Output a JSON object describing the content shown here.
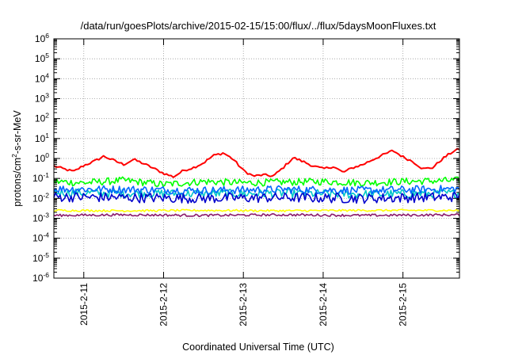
{
  "chart_data": {
    "type": "line",
    "title": "/data/run/goesPlots/archive/2015-02-15/15:00/flux/../flux/5daysMoonFluxes.txt",
    "xlabel": "Coordinated Universal Time (UTC)",
    "ylabel": {
      "base": "protons/cm",
      "exp": "2",
      "rest": "-s-sr-MeV"
    },
    "yscale": "log",
    "ylim": [
      1e-06,
      1000000.0
    ],
    "y_ticks": [
      {
        "base": "10",
        "exp": "-6"
      },
      {
        "base": "10",
        "exp": "-5"
      },
      {
        "base": "10",
        "exp": "-4"
      },
      {
        "base": "10",
        "exp": "-3"
      },
      {
        "base": "10",
        "exp": "-2"
      },
      {
        "base": "10",
        "exp": "-1"
      },
      {
        "base": "10",
        "exp": "0"
      },
      {
        "base": "10",
        "exp": "1"
      },
      {
        "base": "10",
        "exp": "2"
      },
      {
        "base": "10",
        "exp": "3"
      },
      {
        "base": "10",
        "exp": "4"
      },
      {
        "base": "10",
        "exp": "5"
      },
      {
        "base": "10",
        "exp": "6"
      }
    ],
    "xlim": [
      "2015-02-10T15:00",
      "2015-02-15T17:00"
    ],
    "x_ticks": [
      "2015-2-11",
      "2015-2-12",
      "2015-2-13",
      "2015-2-14",
      "2015-2-15"
    ],
    "grid": true,
    "series": [
      {
        "color": "#ff0000",
        "points": [
          [
            "2015-02-10T15:00",
            0.42
          ],
          [
            "2015-02-10T18:00",
            0.3
          ],
          [
            "2015-02-10T21:00",
            0.22
          ],
          [
            "2015-02-11T00:00",
            0.45
          ],
          [
            "2015-02-11T03:00",
            0.7
          ],
          [
            "2015-02-11T06:00",
            1.3
          ],
          [
            "2015-02-11T09:00",
            0.8
          ],
          [
            "2015-02-11T12:00",
            0.5
          ],
          [
            "2015-02-11T15:00",
            0.9
          ],
          [
            "2015-02-11T18:00",
            0.55
          ],
          [
            "2015-02-11T21:00",
            0.32
          ],
          [
            "2015-02-12T00:00",
            0.18
          ],
          [
            "2015-02-12T03:00",
            0.12
          ],
          [
            "2015-02-12T06:00",
            0.25
          ],
          [
            "2015-02-12T09:00",
            0.35
          ],
          [
            "2015-02-12T12:00",
            0.6
          ],
          [
            "2015-02-12T15:00",
            1.4
          ],
          [
            "2015-02-12T18:00",
            1.9
          ],
          [
            "2015-02-12T21:00",
            0.9
          ],
          [
            "2015-02-13T00:00",
            0.25
          ],
          [
            "2015-02-13T03:00",
            0.13
          ],
          [
            "2015-02-13T06:00",
            0.15
          ],
          [
            "2015-02-13T09:00",
            0.13
          ],
          [
            "2015-02-13T12:00",
            0.35
          ],
          [
            "2015-02-13T15:00",
            1.1
          ],
          [
            "2015-02-13T18:00",
            0.7
          ],
          [
            "2015-02-13T21:00",
            0.42
          ],
          [
            "2015-02-14T00:00",
            0.3
          ],
          [
            "2015-02-14T03:00",
            0.4
          ],
          [
            "2015-02-14T06:00",
            0.2
          ],
          [
            "2015-02-14T09:00",
            0.35
          ],
          [
            "2015-02-14T12:00",
            0.5
          ],
          [
            "2015-02-14T15:00",
            0.9
          ],
          [
            "2015-02-14T18:00",
            1.5
          ],
          [
            "2015-02-14T21:00",
            2.5
          ],
          [
            "2015-02-15T00:00",
            1.2
          ],
          [
            "2015-02-15T03:00",
            0.7
          ],
          [
            "2015-02-15T06:00",
            0.3
          ],
          [
            "2015-02-15T09:00",
            0.35
          ],
          [
            "2015-02-15T12:00",
            1.0
          ],
          [
            "2015-02-15T15:00",
            2.2
          ],
          [
            "2015-02-15T17:00",
            3.0
          ]
        ]
      },
      {
        "color": "#00ff00",
        "points": [
          [
            "2015-02-10T15:00",
            0.07
          ],
          [
            "2015-02-11T00:00",
            0.06
          ],
          [
            "2015-02-11T12:00",
            0.08
          ],
          [
            "2015-02-12T00:00",
            0.05
          ],
          [
            "2015-02-12T12:00",
            0.07
          ],
          [
            "2015-02-13T00:00",
            0.06
          ],
          [
            "2015-02-13T12:00",
            0.065
          ],
          [
            "2015-02-14T00:00",
            0.07
          ],
          [
            "2015-02-14T12:00",
            0.06
          ],
          [
            "2015-02-15T00:00",
            0.07
          ],
          [
            "2015-02-15T17:00",
            0.08
          ]
        ]
      },
      {
        "color": "#00c8c8",
        "points": [
          [
            "2015-02-10T15:00",
            0.02
          ],
          [
            "2015-02-11T12:00",
            0.018
          ],
          [
            "2015-02-12T12:00",
            0.017
          ],
          [
            "2015-02-13T12:00",
            0.018
          ],
          [
            "2015-02-14T12:00",
            0.016
          ],
          [
            "2015-02-15T17:00",
            0.018
          ]
        ]
      },
      {
        "color": "#0066ff",
        "points": [
          [
            "2015-02-10T15:00",
            0.03
          ],
          [
            "2015-02-11T12:00",
            0.028
          ],
          [
            "2015-02-12T12:00",
            0.025
          ],
          [
            "2015-02-13T12:00",
            0.028
          ],
          [
            "2015-02-14T12:00",
            0.025
          ],
          [
            "2015-02-15T17:00",
            0.03
          ]
        ]
      },
      {
        "color": "#0000cc",
        "points": [
          [
            "2015-02-10T15:00",
            0.012
          ],
          [
            "2015-02-11T12:00",
            0.011
          ],
          [
            "2015-02-12T12:00",
            0.01
          ],
          [
            "2015-02-13T12:00",
            0.011
          ],
          [
            "2015-02-14T12:00",
            0.01
          ],
          [
            "2015-02-15T17:00",
            0.012
          ]
        ]
      },
      {
        "color": "#ffff00",
        "points": [
          [
            "2015-02-10T15:00",
            0.0025
          ],
          [
            "2015-02-11T12:00",
            0.0024
          ],
          [
            "2015-02-12T12:00",
            0.0025
          ],
          [
            "2015-02-13T12:00",
            0.0024
          ],
          [
            "2015-02-14T12:00",
            0.0025
          ],
          [
            "2015-02-15T17:00",
            0.0025
          ]
        ]
      },
      {
        "color": "#8b1a6b",
        "points": [
          [
            "2015-02-10T15:00",
            0.0014
          ],
          [
            "2015-02-11T12:00",
            0.0015
          ],
          [
            "2015-02-12T12:00",
            0.0014
          ],
          [
            "2015-02-13T12:00",
            0.0015
          ],
          [
            "2015-02-14T12:00",
            0.0014
          ],
          [
            "2015-02-15T17:00",
            0.0015
          ]
        ]
      }
    ]
  }
}
